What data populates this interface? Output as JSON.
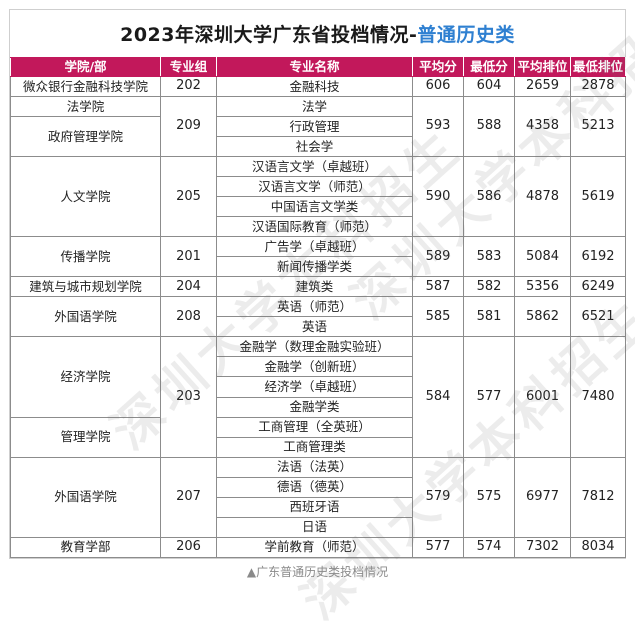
{
  "title_main": "2023年深圳大学广东省投档情况-",
  "title_highlight": "普通历史类",
  "columns": [
    "学院/部",
    "专业组",
    "专业名称",
    "平均分",
    "最低分",
    "平均排位",
    "最低排位"
  ],
  "groups": [
    {
      "college": "微众银行金融科技学院",
      "group": "202",
      "majors": [
        "金融科技"
      ],
      "avg": "606",
      "min": "604",
      "avg_rank": "2659",
      "min_rank": "2878"
    },
    {
      "colleges": [
        {
          "name": "法学院",
          "span": 1
        },
        {
          "name": "政府管理学院",
          "span": 2
        }
      ],
      "group": "209",
      "majors": [
        "法学",
        "行政管理",
        "社会学"
      ],
      "avg": "593",
      "min": "588",
      "avg_rank": "4358",
      "min_rank": "5213"
    },
    {
      "college": "人文学院",
      "group": "205",
      "majors": [
        "汉语言文学（卓越班）",
        "汉语言文学（师范）",
        "中国语言文学类",
        "汉语国际教育（师范）"
      ],
      "avg": "590",
      "min": "586",
      "avg_rank": "4878",
      "min_rank": "5619"
    },
    {
      "college": "传播学院",
      "group": "201",
      "majors": [
        "广告学（卓越班）",
        "新闻传播学类"
      ],
      "avg": "589",
      "min": "583",
      "avg_rank": "5084",
      "min_rank": "6192"
    },
    {
      "college": "建筑与城市规划学院",
      "group": "204",
      "majors": [
        "建筑类"
      ],
      "avg": "587",
      "min": "582",
      "avg_rank": "5356",
      "min_rank": "6249"
    },
    {
      "college": "外国语学院",
      "group": "208",
      "majors": [
        "英语（师范）",
        "英语"
      ],
      "avg": "585",
      "min": "581",
      "avg_rank": "5862",
      "min_rank": "6521"
    },
    {
      "colleges": [
        {
          "name": "经济学院",
          "span": 4
        },
        {
          "name": "管理学院",
          "span": 2
        }
      ],
      "group": "203",
      "majors": [
        "金融学（数理金融实验班）",
        "金融学（创新班）",
        "经济学（卓越班）",
        "金融学类",
        "工商管理（全英班）",
        "工商管理类"
      ],
      "avg": "584",
      "min": "577",
      "avg_rank": "6001",
      "min_rank": "7480"
    },
    {
      "college": "外国语学院",
      "group": "207",
      "majors": [
        "法语（法英）",
        "德语（德英）",
        "西班牙语",
        "日语"
      ],
      "avg": "579",
      "min": "575",
      "avg_rank": "6977",
      "min_rank": "7812"
    },
    {
      "college": "教育学部",
      "group": "206",
      "majors": [
        "学前教育（师范）"
      ],
      "avg": "577",
      "min": "574",
      "avg_rank": "7302",
      "min_rank": "8034"
    }
  ],
  "watermark": "深圳大学本科招生",
  "caption": "▲广东普通历史类投档情况"
}
